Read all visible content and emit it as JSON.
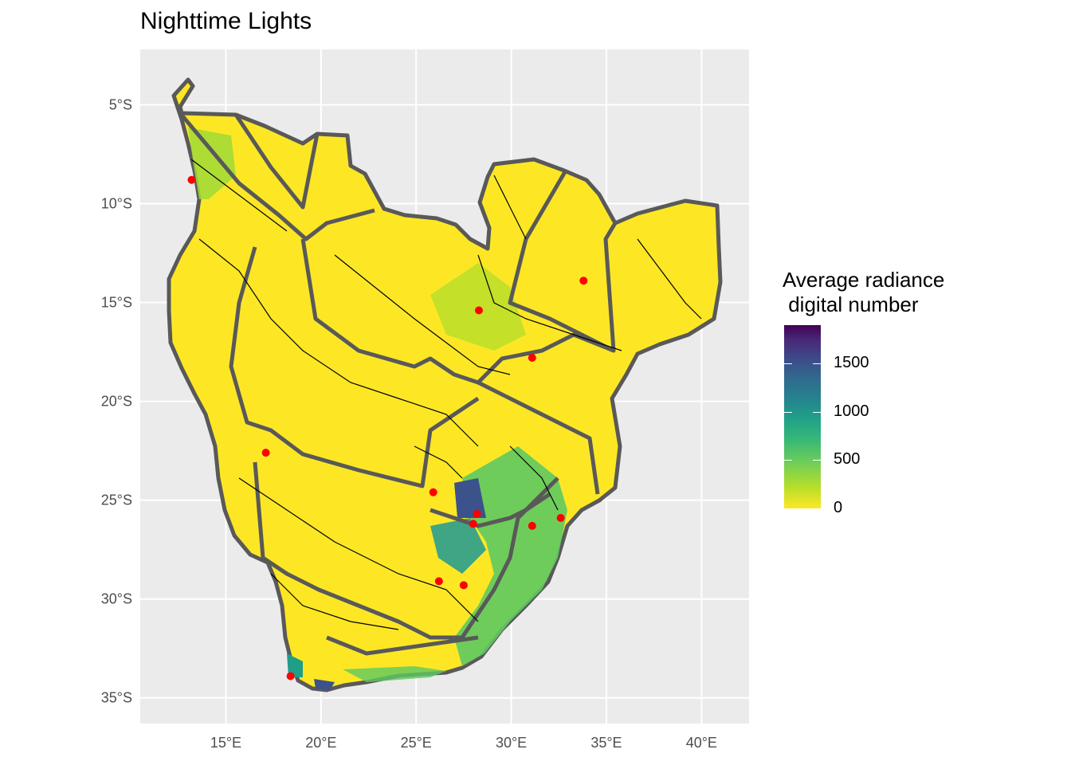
{
  "title": "Nighttime Lights",
  "map": {
    "panel_bg": "#ebebeb",
    "grid_color": "#ffffff",
    "boundary_color": "#595959",
    "river_color": "#000000",
    "city_color": "#ff0000",
    "lon_range": [
      10.5,
      42.5
    ],
    "lat_range": [
      -36.3,
      -2.2
    ],
    "lon_ticks": [
      15,
      20,
      25,
      30,
      35,
      40
    ],
    "lon_labels": [
      "15°E",
      "20°E",
      "25°E",
      "30°E",
      "35°E",
      "40°E"
    ],
    "lat_ticks": [
      -5,
      -10,
      -15,
      -20,
      -25,
      -30,
      -35
    ],
    "lat_labels": [
      "5°S",
      "10°S",
      "15°S",
      "20°S",
      "25°S",
      "30°S",
      "35°S"
    ],
    "cities": [
      {
        "lon": 13.2,
        "lat": -8.8
      },
      {
        "lon": 28.3,
        "lat": -15.4
      },
      {
        "lon": 33.8,
        "lat": -13.9
      },
      {
        "lon": 31.1,
        "lat": -17.8
      },
      {
        "lon": 17.1,
        "lat": -22.6
      },
      {
        "lon": 25.9,
        "lat": -24.6
      },
      {
        "lon": 28.2,
        "lat": -25.7
      },
      {
        "lon": 28.0,
        "lat": -26.2
      },
      {
        "lon": 31.1,
        "lat": -26.3
      },
      {
        "lon": 32.6,
        "lat": -25.9
      },
      {
        "lon": 26.2,
        "lat": -29.1
      },
      {
        "lon": 27.5,
        "lat": -29.3
      },
      {
        "lon": 18.4,
        "lat": -33.9
      }
    ]
  },
  "legend": {
    "title": "Average radiance\n digital number",
    "labels": [
      "1500",
      "1000",
      "500",
      "0"
    ],
    "values": [
      1500,
      1000,
      500,
      0
    ],
    "max": 1900,
    "palette": "viridis"
  }
}
